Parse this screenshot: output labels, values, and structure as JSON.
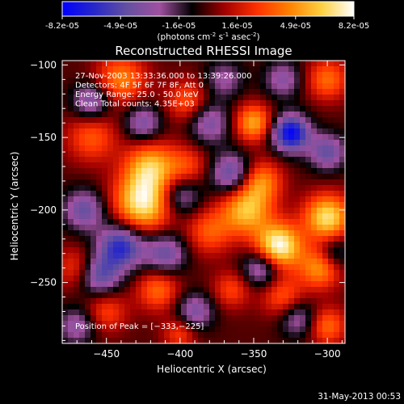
{
  "colorbar": {
    "tick_labels": [
      "-8.2e-05",
      "-4.9e-05",
      "-1.6e-05",
      "1.6e-05",
      "4.9e-05",
      "8.2e-05"
    ],
    "range": [
      -8.2e-05,
      8.2e-05
    ],
    "units_main": "(photons cm",
    "units_exp1": "-2",
    "units_mid": " s",
    "units_exp2": "-1",
    "units_end": " asec",
    "units_exp3": "-2",
    "units_close": ")",
    "colors": [
      "#0000ff",
      "#2828c8",
      "#6450a0",
      "#a050a0",
      "#000000",
      "#a00000",
      "#ff3000",
      "#ff8000",
      "#ffd040",
      "#ffffff"
    ]
  },
  "chart_data": {
    "type": "heatmap",
    "title": "Reconstructed RHESSI Image",
    "xlabel": "Heliocentric X (arcsec)",
    "ylabel": "Heliocentric Y (arcsec)",
    "xlim": [
      -480,
      -288
    ],
    "ylim": [
      -292,
      -97
    ],
    "x_ticks": [
      -450,
      -400,
      -350,
      -300
    ],
    "y_ticks": [
      -100,
      -150,
      -200,
      -250
    ],
    "x_tick_labels": [
      "−450",
      "−400",
      "−350",
      "−300"
    ],
    "y_tick_labels": [
      "−100",
      "−150",
      "−200",
      "−250"
    ],
    "grid": false,
    "annotations": [
      "27-Nov-2003 13:33:36.000 to 13:39:26.000",
      "Detectors: 4F 5F 6F 7F 8F, Att 0",
      "Energy Range: 25.0 - 50.0 keV",
      "Clean    Total counts: 4.35E+03"
    ],
    "peak_label": "Position of Peak = [−333,−225]",
    "peak": [
      -333,
      -225
    ],
    "blobs": [
      {
        "x": -425,
        "y": -195,
        "a": 7.5e-05,
        "s": 14
      },
      {
        "x": -420,
        "y": -170,
        "a": 5.5e-05,
        "s": 12
      },
      {
        "x": -440,
        "y": -110,
        "a": 4.5e-05,
        "s": 12
      },
      {
        "x": -460,
        "y": -150,
        "a": 3.5e-05,
        "s": 12
      },
      {
        "x": -470,
        "y": -240,
        "a": 3e-05,
        "s": 10
      },
      {
        "x": -415,
        "y": -255,
        "a": 4e-05,
        "s": 10
      },
      {
        "x": -450,
        "y": -270,
        "a": 3e-05,
        "s": 10
      },
      {
        "x": -395,
        "y": -170,
        "a": 3e-05,
        "s": 10
      },
      {
        "x": -380,
        "y": -215,
        "a": 3.5e-05,
        "s": 11
      },
      {
        "x": -333,
        "y": -225,
        "a": 8.2e-05,
        "s": 11
      },
      {
        "x": -355,
        "y": -200,
        "a": 6e-05,
        "s": 12
      },
      {
        "x": -345,
        "y": -180,
        "a": 4.5e-05,
        "s": 10
      },
      {
        "x": -300,
        "y": -205,
        "a": 7e-05,
        "s": 11
      },
      {
        "x": -305,
        "y": -240,
        "a": 5e-05,
        "s": 10
      },
      {
        "x": -350,
        "y": -140,
        "a": 5.5e-05,
        "s": 9
      },
      {
        "x": -300,
        "y": -110,
        "a": 4e-05,
        "s": 10
      },
      {
        "x": -395,
        "y": -125,
        "a": 3.5e-05,
        "s": 10
      },
      {
        "x": -330,
        "y": -260,
        "a": 3.5e-05,
        "s": 10
      },
      {
        "x": -365,
        "y": -255,
        "a": 3e-05,
        "s": 9
      },
      {
        "x": -400,
        "y": -285,
        "a": 3e-05,
        "s": 8
      },
      {
        "x": -300,
        "y": -280,
        "a": 4e-05,
        "s": 9
      },
      {
        "x": -325,
        "y": -147,
        "a": -8e-05,
        "s": 9
      },
      {
        "x": -440,
        "y": -225,
        "a": -6.5e-05,
        "s": 11
      },
      {
        "x": -455,
        "y": -245,
        "a": -5e-05,
        "s": 10
      },
      {
        "x": -465,
        "y": -200,
        "a": -4.5e-05,
        "s": 10
      },
      {
        "x": -410,
        "y": -230,
        "a": -4.5e-05,
        "s": 10
      },
      {
        "x": -365,
        "y": -175,
        "a": -5e-05,
        "s": 10
      },
      {
        "x": -380,
        "y": -140,
        "a": -4e-05,
        "s": 10
      },
      {
        "x": -460,
        "y": -125,
        "a": -4.5e-05,
        "s": 9
      },
      {
        "x": -400,
        "y": -190,
        "a": -4e-05,
        "s": 10
      },
      {
        "x": -425,
        "y": -140,
        "a": -4e-05,
        "s": 9
      },
      {
        "x": -345,
        "y": -240,
        "a": -4.5e-05,
        "s": 9
      },
      {
        "x": -390,
        "y": -270,
        "a": -4e-05,
        "s": 9
      },
      {
        "x": -320,
        "y": -275,
        "a": -3.5e-05,
        "s": 9
      },
      {
        "x": -300,
        "y": -160,
        "a": -4.5e-05,
        "s": 9
      },
      {
        "x": -295,
        "y": -230,
        "a": -3e-05,
        "s": 8
      },
      {
        "x": -470,
        "y": -280,
        "a": -3.5e-05,
        "s": 9
      },
      {
        "x": -330,
        "y": -110,
        "a": -3.5e-05,
        "s": 9
      },
      {
        "x": -370,
        "y": -110,
        "a": -3e-05,
        "s": 9
      }
    ]
  },
  "footer": {
    "date": "31-May-2013 00:53"
  }
}
